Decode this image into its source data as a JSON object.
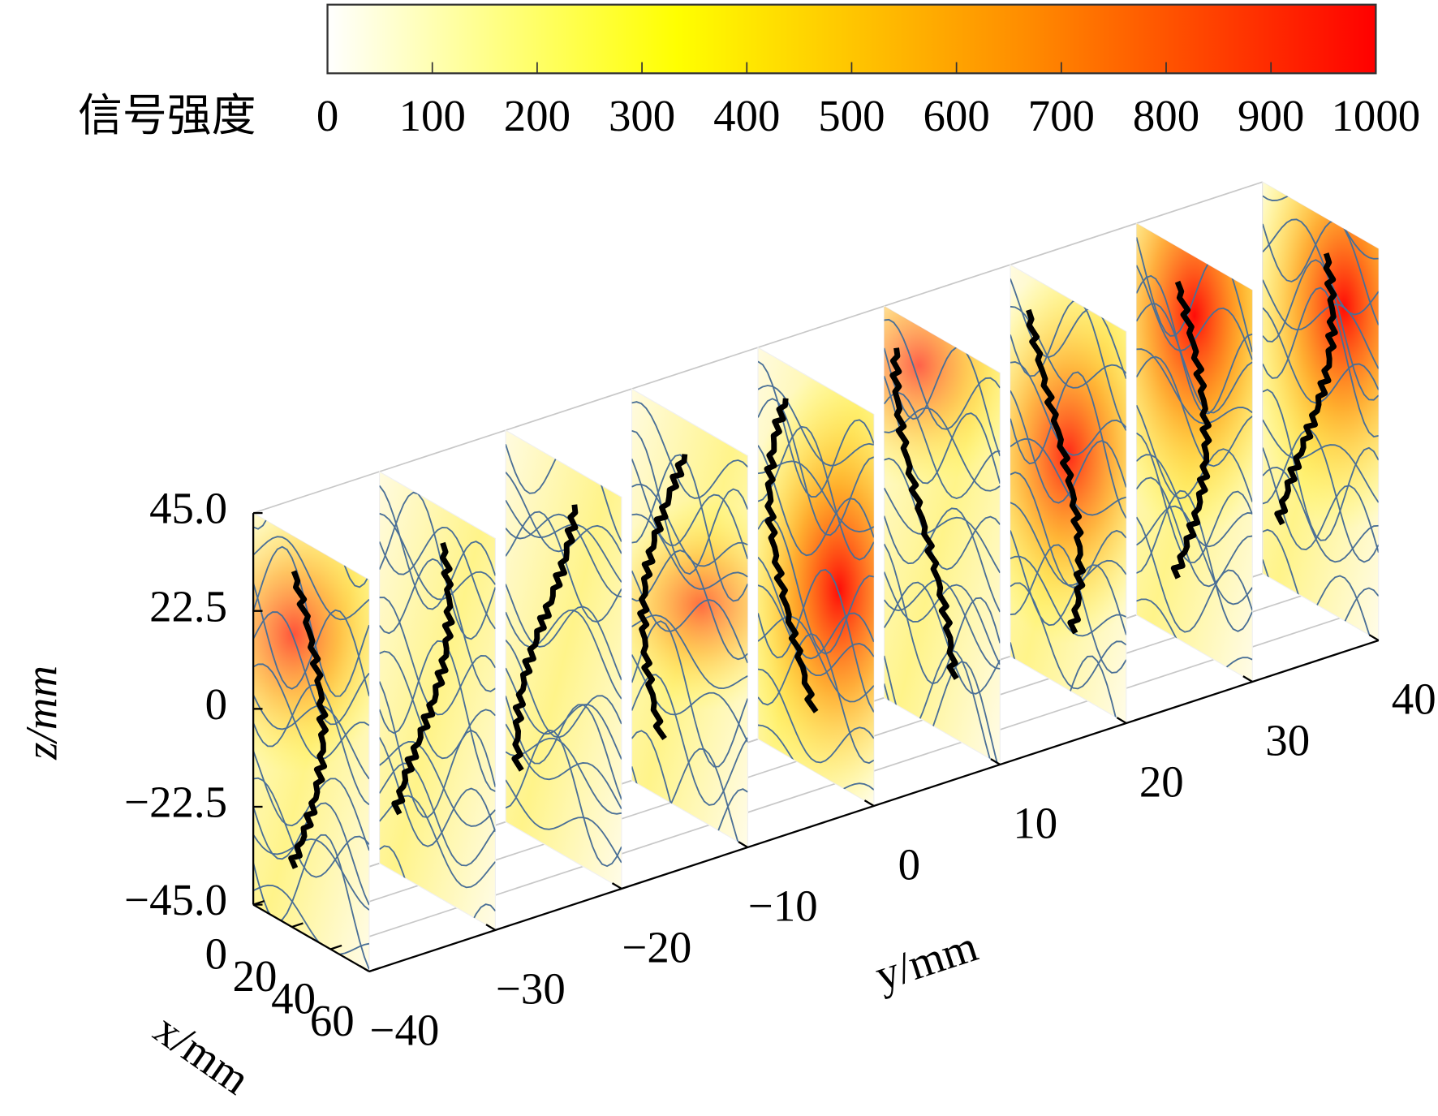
{
  "chart_data": {
    "type": "slice3d",
    "colorbar": {
      "label": "信号强度",
      "lim": [
        0,
        1000
      ],
      "ticks": [
        0,
        100,
        200,
        300,
        400,
        500,
        600,
        700,
        800,
        900,
        1000
      ],
      "colors": [
        "#ffffff",
        "#ffff00",
        "#ff8c00",
        "#ff0000"
      ]
    },
    "xlabel": "x/mm",
    "ylabel": "y/mm",
    "zlabel": "z/mm",
    "xlim": [
      0,
      60
    ],
    "ylim": [
      -40,
      40
    ],
    "zlim": [
      -45,
      45
    ],
    "xticks": [
      0,
      20,
      40,
      60
    ],
    "yticks": [
      {
        "value": -40,
        "label": "−40"
      },
      {
        "value": -30,
        "label": "−30"
      },
      {
        "value": -20,
        "label": "−20"
      },
      {
        "value": -10,
        "label": "−10"
      },
      0,
      10,
      20,
      30,
      40
    ],
    "zticks": [
      {
        "value": 45,
        "label": "45.0"
      },
      22.5,
      0,
      {
        "value": -22.5,
        "label": "−22.5"
      },
      {
        "value": -45,
        "label": "−45.0"
      }
    ],
    "slices_y": [
      -40,
      -30,
      -20,
      -10,
      0,
      10,
      20,
      30,
      40
    ],
    "streamline_color": "#4a6f96",
    "contour_color": "#000000"
  }
}
